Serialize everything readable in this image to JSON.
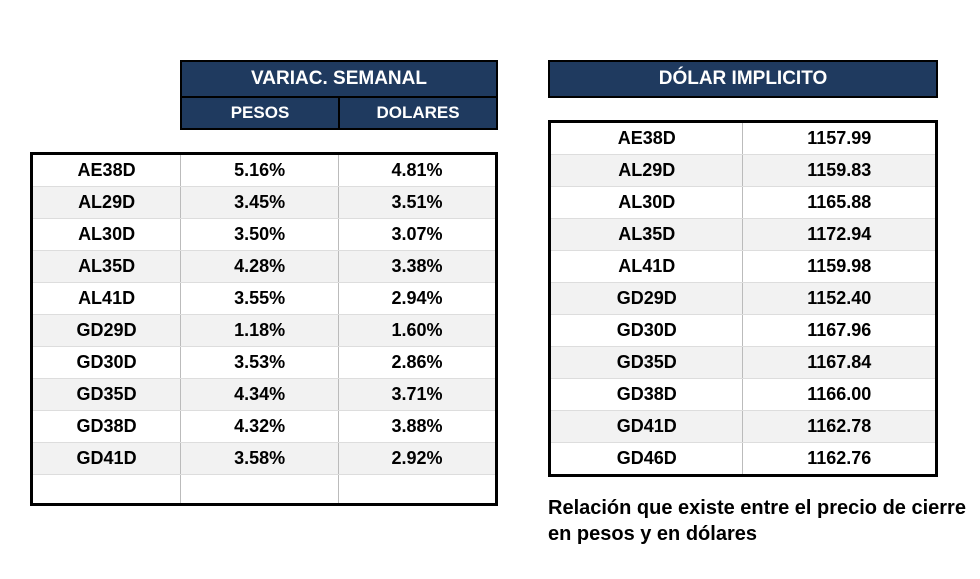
{
  "left": {
    "title": "VARIAC. SEMANAL",
    "sub_pesos": "PESOS",
    "sub_dolares": "DOLARES",
    "header_bg": "#1f3a5f",
    "header_fg": "#ffffff",
    "stripe_bg": "#f2f2f2",
    "rows": [
      {
        "ticker": "AE38D",
        "pesos": "5.16%",
        "dolares": "4.81%"
      },
      {
        "ticker": "AL29D",
        "pesos": "3.45%",
        "dolares": "3.51%"
      },
      {
        "ticker": "AL30D",
        "pesos": "3.50%",
        "dolares": "3.07%"
      },
      {
        "ticker": "AL35D",
        "pesos": "4.28%",
        "dolares": "3.38%"
      },
      {
        "ticker": "AL41D",
        "pesos": "3.55%",
        "dolares": "2.94%"
      },
      {
        "ticker": "GD29D",
        "pesos": "1.18%",
        "dolares": "1.60%"
      },
      {
        "ticker": "GD30D",
        "pesos": "3.53%",
        "dolares": "2.86%"
      },
      {
        "ticker": "GD35D",
        "pesos": "4.34%",
        "dolares": "3.71%"
      },
      {
        "ticker": "GD38D",
        "pesos": "4.32%",
        "dolares": "3.88%"
      },
      {
        "ticker": "GD41D",
        "pesos": "3.58%",
        "dolares": "2.92%"
      },
      {
        "ticker": "",
        "pesos": "",
        "dolares": ""
      }
    ]
  },
  "right": {
    "title": "DÓLAR IMPLICITO",
    "header_bg": "#1f3a5f",
    "header_fg": "#ffffff",
    "stripe_bg": "#f2f2f2",
    "rows": [
      {
        "ticker": "AE38D",
        "value": "1157.99"
      },
      {
        "ticker": "AL29D",
        "value": "1159.83"
      },
      {
        "ticker": "AL30D",
        "value": "1165.88"
      },
      {
        "ticker": "AL35D",
        "value": "1172.94"
      },
      {
        "ticker": "AL41D",
        "value": "1159.98"
      },
      {
        "ticker": "GD29D",
        "value": "1152.40"
      },
      {
        "ticker": "GD30D",
        "value": "1167.96"
      },
      {
        "ticker": "GD35D",
        "value": "1167.84"
      },
      {
        "ticker": "GD38D",
        "value": "1166.00"
      },
      {
        "ticker": "GD41D",
        "value": "1162.78"
      },
      {
        "ticker": "GD46D",
        "value": "1162.76"
      }
    ],
    "caption": "Relación que existe entre el precio de cierre en pesos y en dólares"
  }
}
